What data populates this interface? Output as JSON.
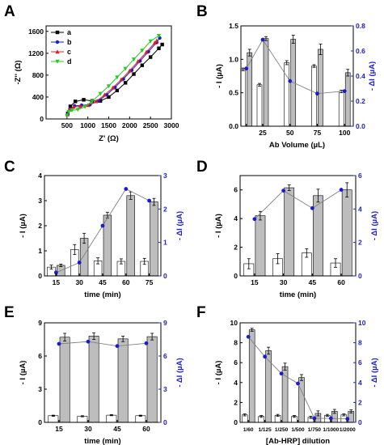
{
  "colors": {
    "bar_gray": "#bdbdbd",
    "bar_white": "#ffffff",
    "blue": "#1a1ad4",
    "right_axis": "#2020c8",
    "line_gray": "#808080"
  },
  "chart_data": [
    {
      "panel": "A",
      "type": "scatter",
      "xlabel": "Z' (Ω)",
      "ylabel": "-Z'' (Ω)",
      "xlim": [
        0,
        3000
      ],
      "ylim": [
        0,
        1700
      ],
      "xticks": [
        500,
        1000,
        1500,
        2000,
        2500,
        3000
      ],
      "yticks": [
        0,
        400,
        800,
        1200,
        1600
      ],
      "legend_position": "top-left",
      "series": [
        {
          "name": "a",
          "color": "#000000",
          "marker": "square",
          "x": [
            520,
            580,
            700,
            900,
            1100,
            1300,
            1500,
            1700,
            1900,
            2100,
            2300,
            2500,
            2700,
            2780
          ],
          "y": [
            100,
            230,
            320,
            350,
            330,
            330,
            400,
            520,
            660,
            820,
            980,
            1130,
            1290,
            1360
          ]
        },
        {
          "name": "b",
          "color": "#1a1ad4",
          "marker": "circle",
          "x": [
            520,
            570,
            680,
            850,
            1050,
            1250,
            1450,
            1650,
            1850,
            2050,
            2250,
            2450,
            2650,
            2720
          ],
          "y": [
            80,
            180,
            240,
            250,
            260,
            330,
            440,
            580,
            730,
            890,
            1060,
            1230,
            1400,
            1480
          ]
        },
        {
          "name": "c",
          "color": "#e02020",
          "marker": "triangle",
          "x": [
            510,
            560,
            660,
            820,
            1000,
            1200,
            1400,
            1600,
            1800,
            2000,
            2200,
            2400,
            2600,
            2650
          ],
          "y": [
            80,
            170,
            220,
            230,
            250,
            320,
            440,
            570,
            720,
            880,
            1050,
            1220,
            1390,
            1430
          ]
        },
        {
          "name": "d",
          "color": "#22cc22",
          "marker": "triangle-down",
          "x": [
            500,
            540,
            620,
            760,
            930,
            1100,
            1300,
            1500,
            1700,
            1900,
            2100,
            2300,
            2500,
            2700
          ],
          "y": [
            60,
            130,
            160,
            170,
            220,
            320,
            460,
            600,
            760,
            920,
            1090,
            1250,
            1420,
            1520
          ]
        }
      ]
    },
    {
      "panel": "B",
      "type": "bar",
      "xlabel": "Ab Volume (µL)",
      "ylabel": "- I (µA)",
      "ylabel_right": "- ΔI (µA)",
      "ylim": [
        0,
        1.5
      ],
      "yticks": [
        "0.0",
        "0.5",
        "1.0",
        "1.5"
      ],
      "ylim_right": [
        0,
        0.8
      ],
      "yticks_right": [
        "0.0",
        "0.2",
        "0.4",
        "0.6",
        "0.8"
      ],
      "categories": [
        "25",
        "50",
        "75",
        "100"
      ],
      "xticks": [
        10,
        25,
        50,
        75,
        100
      ],
      "xtick_labels": [
        "",
        "25",
        "50",
        "75",
        "100"
      ],
      "xlim": [
        5,
        108
      ],
      "x": [
        10,
        25,
        50,
        75,
        100
      ],
      "white": [
        0.85,
        0.62,
        0.95,
        0.9,
        0.52
      ],
      "white_err": [
        0.02,
        0.02,
        0.03,
        0.02,
        0.02
      ],
      "gray": [
        1.1,
        1.31,
        1.3,
        1.15,
        0.8
      ],
      "gray_err": [
        0.05,
        0.03,
        0.06,
        0.08,
        0.05
      ],
      "delta": [
        0.46,
        0.69,
        0.36,
        0.26,
        0.28
      ]
    },
    {
      "panel": "C",
      "type": "bar",
      "xlabel": "time (min)",
      "ylabel": "- I (µA)",
      "ylabel_right": "- ΔI (µA)",
      "ylim": [
        0,
        4
      ],
      "yticks": [
        "0",
        "1",
        "2",
        "3",
        "4"
      ],
      "ylim_right": [
        0,
        3
      ],
      "yticks_right": [
        "0",
        "1",
        "2",
        "3"
      ],
      "categories": [
        "15",
        "30",
        "45",
        "60",
        "75"
      ],
      "white": [
        0.35,
        1.05,
        0.6,
        0.58,
        0.58
      ],
      "white_err": [
        0.08,
        0.2,
        0.12,
        0.1,
        0.12
      ],
      "gray": [
        0.42,
        1.5,
        2.42,
        3.2,
        2.95
      ],
      "gray_err": [
        0.05,
        0.2,
        0.12,
        0.15,
        0.14
      ],
      "delta": [
        0.1,
        0.4,
        1.5,
        2.6,
        2.25
      ]
    },
    {
      "panel": "D",
      "type": "bar",
      "xlabel": "time (min)",
      "ylabel": "- I (µA)",
      "ylabel_right": "- ΔI (µA)",
      "ylim": [
        0,
        7
      ],
      "yticks": [
        "0",
        "2",
        "4",
        "6"
      ],
      "ylim_right": [
        0,
        6
      ],
      "yticks_right": [
        "0",
        "2",
        "4",
        "6"
      ],
      "categories": [
        "15",
        "30",
        "45",
        "60"
      ],
      "white": [
        0.85,
        1.2,
        1.6,
        0.9
      ],
      "white_err": [
        0.35,
        0.35,
        0.3,
        0.3
      ],
      "gray": [
        4.2,
        6.15,
        5.6,
        6.0
      ],
      "gray_err": [
        0.3,
        0.2,
        0.45,
        0.5
      ],
      "delta": [
        3.4,
        5.1,
        4.05,
        5.15
      ]
    },
    {
      "panel": "E",
      "type": "bar",
      "xlabel": "time (min)",
      "ylabel": "- I (µA)",
      "ylabel_right": "- ΔI (µA)",
      "ylim": [
        0,
        9
      ],
      "yticks": [
        "0",
        "3",
        "6",
        "9"
      ],
      "ylim_right": [
        0,
        9
      ],
      "yticks_right": [
        "0",
        "3",
        "6",
        "9"
      ],
      "categories": [
        "15",
        "30",
        "45",
        "60"
      ],
      "white": [
        0.6,
        0.55,
        0.65,
        0.6
      ],
      "white_err": [
        0.05,
        0.05,
        0.05,
        0.05
      ],
      "gray": [
        7.7,
        7.8,
        7.55,
        7.75
      ],
      "gray_err": [
        0.35,
        0.3,
        0.25,
        0.3
      ],
      "delta": [
        7.1,
        7.3,
        6.9,
        7.15
      ]
    },
    {
      "panel": "F",
      "type": "bar",
      "xlabel": "[Ab-HRP] dilution",
      "ylabel": "- I (µA)",
      "ylabel_right": "- ΔI (µA)",
      "ylim": [
        0,
        10
      ],
      "yticks": [
        "0",
        "2",
        "4",
        "6",
        "8",
        "10"
      ],
      "ylim_right": [
        0,
        10
      ],
      "yticks_right": [
        "0",
        "2",
        "4",
        "6",
        "8",
        "10"
      ],
      "categories": [
        "1/60",
        "1/125",
        "1/250",
        "1/500",
        "1/750",
        "1/1000",
        "1/2000"
      ],
      "white": [
        0.75,
        0.6,
        0.7,
        0.6,
        0.5,
        0.7,
        0.75
      ],
      "white_err": [
        0.1,
        0.1,
        0.1,
        0.1,
        0.1,
        0.1,
        0.1
      ],
      "gray": [
        9.3,
        7.2,
        5.6,
        4.5,
        0.9,
        1.1,
        1.1
      ],
      "gray_err": [
        0.15,
        0.35,
        0.35,
        0.3,
        0.25,
        0.2,
        0.15
      ],
      "delta": [
        8.6,
        6.6,
        4.9,
        3.9,
        0.4,
        0.4,
        0.35
      ]
    }
  ]
}
